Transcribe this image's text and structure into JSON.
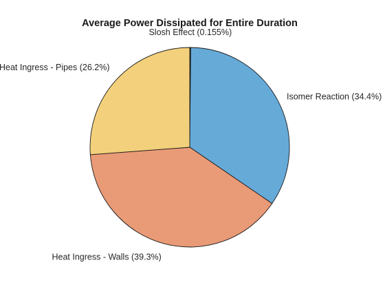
{
  "chart_data": {
    "type": "pie",
    "title": "Average Power Dissipated for Entire Duration",
    "start_angle_deg": 90,
    "direction": "clockwise",
    "slices": [
      {
        "name": "Slosh Effect",
        "value": 0.155,
        "label": "Slosh Effect (0.155%)",
        "color": "#2f2f2f"
      },
      {
        "name": "Isomer Reaction",
        "value": 34.4,
        "label": "Isomer Reaction (34.4%)",
        "color": "#66aad8"
      },
      {
        "name": "Heat Ingress - Walls",
        "value": 39.3,
        "label": "Heat Ingress - Walls (39.3%)",
        "color": "#e99a76"
      },
      {
        "name": "Heat Ingress - Pipes",
        "value": 26.2,
        "label": "Heat Ingress - Pipes (26.2%)",
        "color": "#f3d07b"
      }
    ]
  }
}
